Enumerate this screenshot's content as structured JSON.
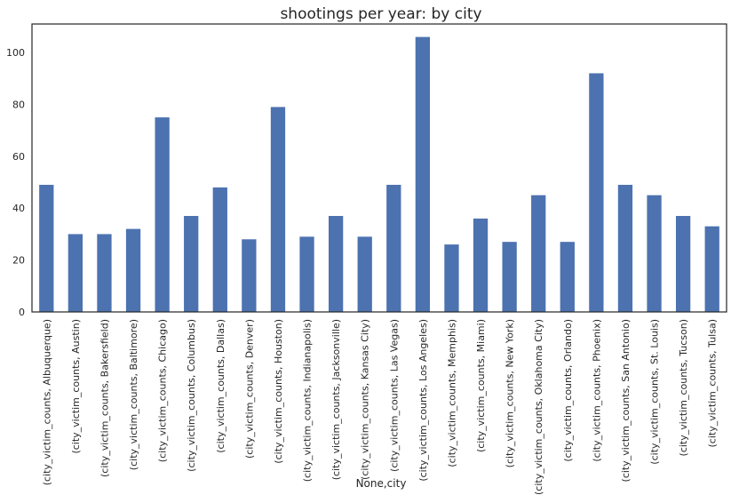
{
  "chart_data": {
    "type": "bar",
    "title": "shootings per year: by city",
    "xlabel": "None,city",
    "ylabel": "",
    "ylim": [
      0,
      111
    ],
    "yticks": [
      0,
      20,
      40,
      60,
      80,
      100
    ],
    "grid": false,
    "legend": "none",
    "bar_color": "#4c72b0",
    "categories": [
      "(city_victim_counts, Albuquerque)",
      "(city_victim_counts, Austin)",
      "(city_victim_counts, Bakersfield)",
      "(city_victim_counts, Baltimore)",
      "(city_victim_counts, Chicago)",
      "(city_victim_counts, Columbus)",
      "(city_victim_counts, Dallas)",
      "(city_victim_counts, Denver)",
      "(city_victim_counts, Houston)",
      "(city_victim_counts, Indianapolis)",
      "(city_victim_counts, Jacksonville)",
      "(city_victim_counts, Kansas City)",
      "(city_victim_counts, Las Vegas)",
      "(city_victim_counts, Los Angeles)",
      "(city_victim_counts, Memphis)",
      "(city_victim_counts, Miami)",
      "(city_victim_counts, New York)",
      "(city_victim_counts, Oklahoma City)",
      "(city_victim_counts, Orlando)",
      "(city_victim_counts, Phoenix)",
      "(city_victim_counts, San Antonio)",
      "(city_victim_counts, St. Louis)",
      "(city_victim_counts, Tucson)",
      "(city_victim_counts, Tulsa)"
    ],
    "values": [
      49,
      30,
      30,
      32,
      75,
      37,
      48,
      28,
      79,
      29,
      37,
      29,
      49,
      106,
      26,
      36,
      27,
      45,
      27,
      92,
      49,
      45,
      37,
      33
    ]
  }
}
